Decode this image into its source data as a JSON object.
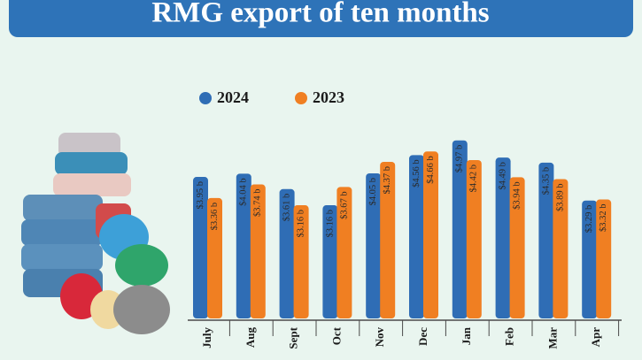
{
  "chart_data": {
    "type": "bar",
    "title": "RMG export of ten months",
    "categories": [
      "July",
      "Aug",
      "Sept",
      "Oct",
      "Nov",
      "Dec",
      "Jan",
      "Feb",
      "Mar",
      "Apr"
    ],
    "series": [
      {
        "name": "2024",
        "color": "#2f6db5",
        "values": [
          3.95,
          4.04,
          3.61,
          3.16,
          4.05,
          4.56,
          4.97,
          4.49,
          4.35,
          3.29
        ],
        "value_labels": [
          "$3.95 b",
          "$4.04 b",
          "$3.61 b",
          "$3.16 b",
          "$4.05 b",
          "$4.56 b",
          "$4.97 b",
          "$4.49 b",
          "$4.35 b",
          "$3.29 b"
        ]
      },
      {
        "name": "2023",
        "color": "#f07f22",
        "values": [
          3.36,
          3.74,
          3.16,
          3.67,
          4.37,
          4.66,
          4.42,
          3.94,
          3.89,
          3.32
        ],
        "value_labels": [
          "$3.36 b",
          "$3.74 b",
          "$3.16 b",
          "$3.67 b",
          "$4.37 b",
          "$4.66 b",
          "$4.42 b",
          "$3.94 b",
          "$3.89 b",
          "$3.32 b"
        ]
      }
    ]
  }
}
